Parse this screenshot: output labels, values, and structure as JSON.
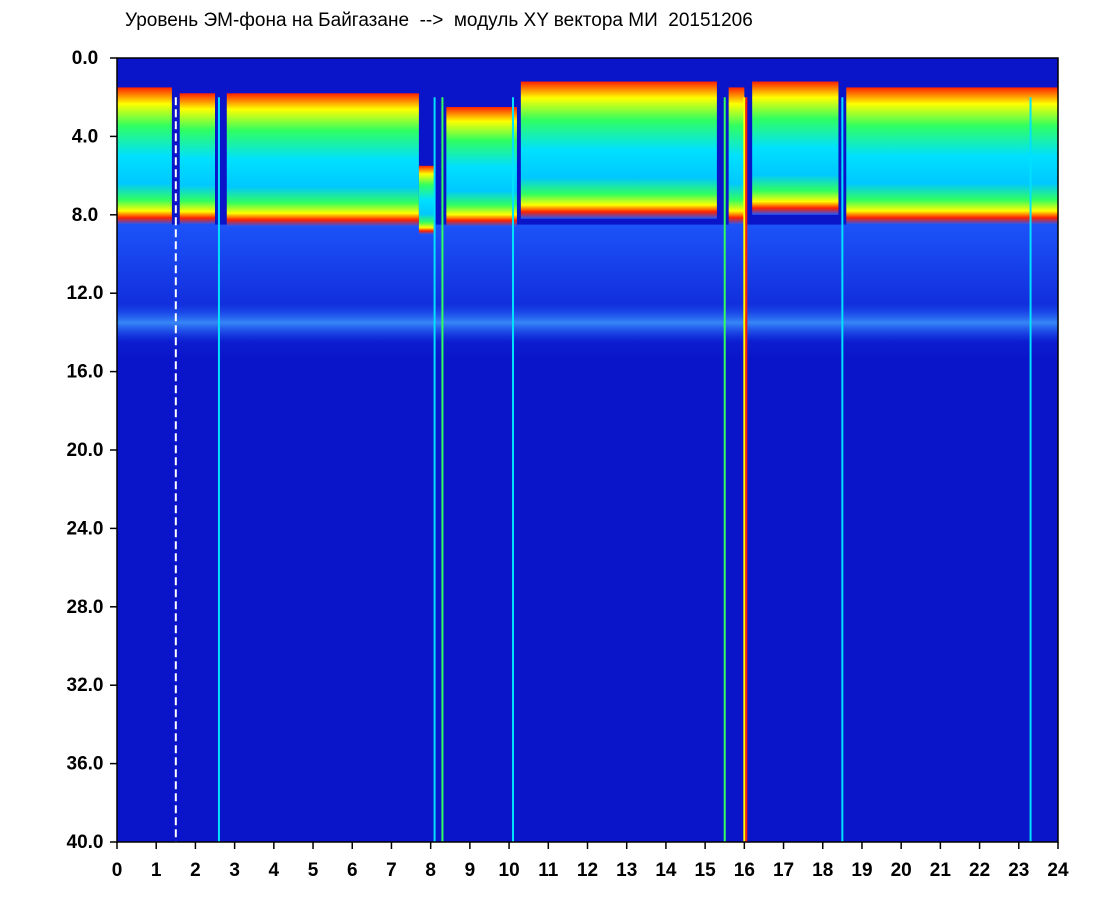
{
  "title": "Уровень ЭМ-фона на Байгазане  -->  модуль XY вектора МИ  20151206",
  "chart_data": {
    "type": "heatmap",
    "title": "Уровень ЭМ-фона на Байгазане  -->  модуль XY вектора МИ  20151206",
    "xlabel": "",
    "ylabel": "",
    "x_range": [
      0,
      24
    ],
    "y_range": [
      0,
      40
    ],
    "y_inverted": true,
    "x_ticks": [
      "0",
      "1",
      "2",
      "3",
      "4",
      "5",
      "6",
      "7",
      "8",
      "9",
      "10",
      "11",
      "12",
      "13",
      "14",
      "15",
      "16",
      "17",
      "18",
      "19",
      "20",
      "21",
      "22",
      "23",
      "24"
    ],
    "y_ticks": [
      "0.0",
      "4.0",
      "8.0",
      "12.0",
      "16.0",
      "20.0",
      "24.0",
      "28.0",
      "32.0",
      "36.0",
      "40.0"
    ],
    "colormap": [
      "#0a14c8",
      "#1e5aff",
      "#00e0ff",
      "#30ff60",
      "#ffff00",
      "#ff2000"
    ],
    "background_color": "#0a14c8",
    "grid": false,
    "legend": "none",
    "high_level_band": {
      "description": "high values near top",
      "segments": [
        {
          "x": [
            0.0,
            1.4
          ],
          "y_top": 1.5,
          "y_bottom": 8.5
        },
        {
          "x": [
            1.6,
            2.5
          ],
          "y_top": 1.8,
          "y_bottom": 8.5
        },
        {
          "x": [
            2.8,
            7.7
          ],
          "y_top": 1.8,
          "y_bottom": 8.6
        },
        {
          "x": [
            7.7,
            8.1
          ],
          "y_top": 5.5,
          "y_bottom": 9.0
        },
        {
          "x": [
            8.4,
            10.2
          ],
          "y_top": 2.5,
          "y_bottom": 8.6
        },
        {
          "x": [
            10.3,
            15.3
          ],
          "y_top": 1.2,
          "y_bottom": 8.2
        },
        {
          "x": [
            15.6,
            16.0
          ],
          "y_top": 1.5,
          "y_bottom": 8.5
        },
        {
          "x": [
            16.2,
            18.4
          ],
          "y_top": 1.2,
          "y_bottom": 8.0
        },
        {
          "x": [
            18.6,
            24.0
          ],
          "y_top": 1.5,
          "y_bottom": 8.5
        }
      ]
    },
    "secondary_band": {
      "x": [
        0,
        24
      ],
      "y_top": 12.5,
      "y_bottom": 14.5
    },
    "vertical_streaks": [
      {
        "x": 1.5,
        "color": "#ffffff",
        "style": "dashed"
      },
      {
        "x": 2.6,
        "color": "#00e0ff",
        "style": "solid"
      },
      {
        "x": 8.1,
        "color": "#00e0ff",
        "style": "solid"
      },
      {
        "x": 8.3,
        "color": "#30ff60",
        "style": "solid"
      },
      {
        "x": 10.1,
        "color": "#00e0ff",
        "style": "solid"
      },
      {
        "x": 15.5,
        "color": "#30ff60",
        "style": "solid"
      },
      {
        "x": 16.0,
        "color": "#ffff00",
        "style": "solid"
      },
      {
        "x": 16.05,
        "color": "#ff2000",
        "style": "solid"
      },
      {
        "x": 18.5,
        "color": "#00e0ff",
        "style": "solid"
      },
      {
        "x": 23.3,
        "color": "#00e0ff",
        "style": "solid"
      }
    ]
  }
}
